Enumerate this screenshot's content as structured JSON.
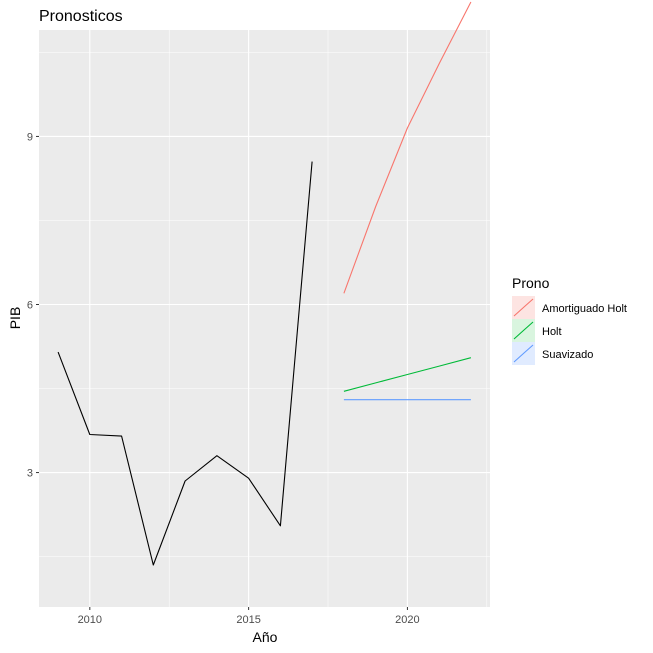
{
  "chart_data": {
    "type": "line",
    "title": "Pronosticos",
    "xlabel": "Año",
    "ylabel": "PIB",
    "xlim": [
      2008.4,
      2022.6
    ],
    "ylim": [
      0.6,
      10.9
    ],
    "x_ticks": [
      2010,
      2015,
      2020
    ],
    "y_ticks": [
      3,
      6,
      9
    ],
    "grid": true,
    "legend": {
      "title": "Prono",
      "placement": "right",
      "entries": [
        "Amortiguado Holt",
        "Holt",
        "Suavizado"
      ]
    },
    "observed": {
      "color": "#000000",
      "x": [
        2009,
        2010,
        2011,
        2012,
        2013,
        2014,
        2015,
        2016,
        2017
      ],
      "y": [
        5.15,
        3.68,
        3.65,
        1.35,
        2.85,
        3.3,
        2.9,
        2.05,
        8.55
      ]
    },
    "series": [
      {
        "name": "Amortiguado Holt",
        "color": "#F8766D",
        "x": [
          2018,
          2019,
          2020,
          2021,
          2022
        ],
        "y": [
          6.2,
          7.75,
          9.15,
          10.3,
          11.4
        ]
      },
      {
        "name": "Holt",
        "color": "#00BA38",
        "x": [
          2018,
          2019,
          2020,
          2021,
          2022
        ],
        "y": [
          4.45,
          4.6,
          4.75,
          4.9,
          5.05
        ]
      },
      {
        "name": "Suavizado",
        "color": "#619CFF",
        "x": [
          2018,
          2019,
          2020,
          2021,
          2022
        ],
        "y": [
          4.3,
          4.3,
          4.3,
          4.3,
          4.3
        ]
      }
    ]
  }
}
